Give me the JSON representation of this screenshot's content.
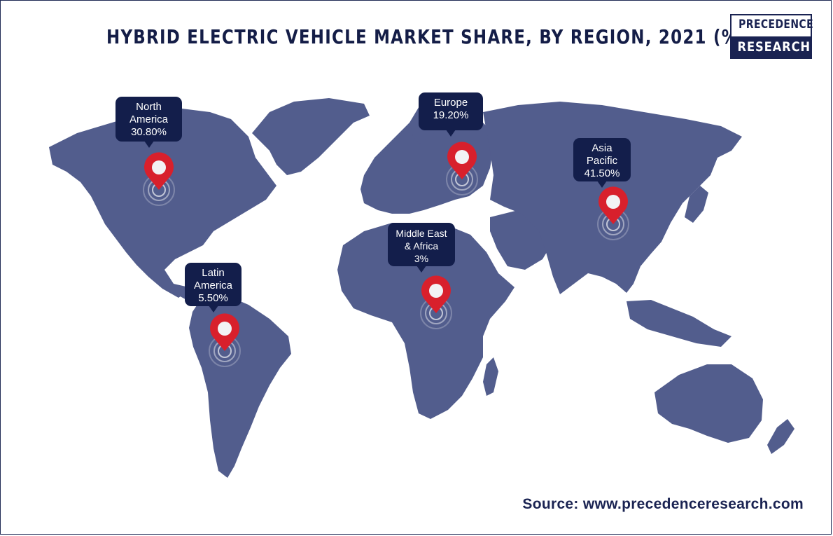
{
  "title": "HYBRID ELECTRIC VEHICLE MARKET SHARE, BY REGION, 2021 (%)",
  "logo": {
    "line1": "PRECEDENCE",
    "line2": "RESEARCH"
  },
  "source": "Source: www.precedenceresearch.com",
  "colors": {
    "land": "#525d8d",
    "callout": "#131e4b",
    "pin": "#d8202c",
    "text": "#141d47"
  },
  "chart_data": {
    "type": "map",
    "unit": "%",
    "regions": [
      {
        "name": "North America",
        "name_lines": [
          "North",
          "America"
        ],
        "value": 30.8,
        "label": "30.80%"
      },
      {
        "name": "Europe",
        "name_lines": [
          "Europe"
        ],
        "value": 19.2,
        "label": "19.20%"
      },
      {
        "name": "Asia Pacific",
        "name_lines": [
          "Asia",
          "Pacific"
        ],
        "value": 41.5,
        "label": "41.50%"
      },
      {
        "name": "Middle East & Africa",
        "name_lines": [
          "Middle East",
          "& Africa"
        ],
        "value": 3,
        "label": "3%"
      },
      {
        "name": "Latin America",
        "name_lines": [
          "Latin",
          "America"
        ],
        "value": 5.5,
        "label": "5.50%"
      }
    ]
  }
}
